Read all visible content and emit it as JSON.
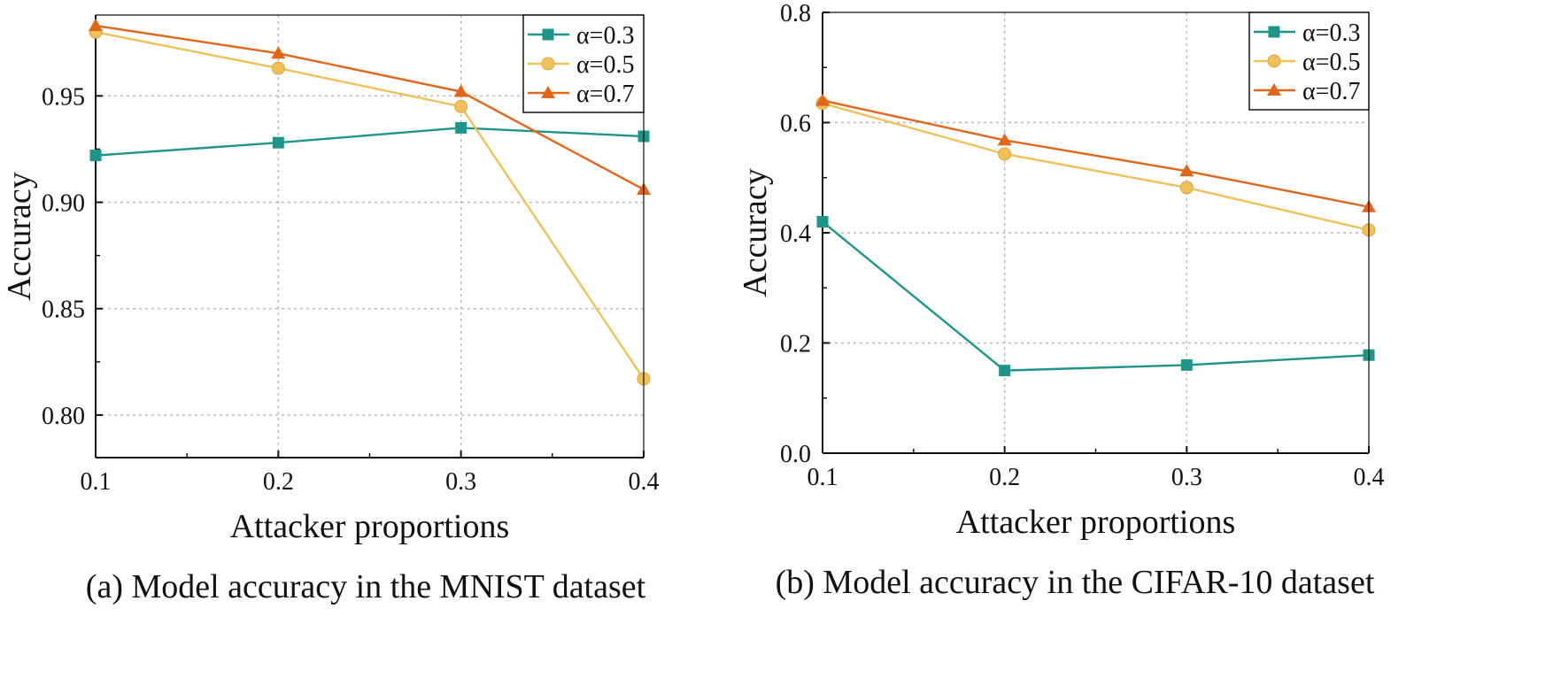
{
  "chart_data": [
    {
      "type": "line",
      "caption": "(a) Model accuracy in the MNIST dataset",
      "xlabel": "Attacker proportions",
      "ylabel": "Accuracy",
      "x": [
        0.1,
        0.2,
        0.3,
        0.4
      ],
      "xticks": [
        "0.1",
        "0.2",
        "0.3",
        "0.4"
      ],
      "xlim": [
        0.1,
        0.4
      ],
      "yticks": [
        "0.80",
        "0.85",
        "0.90",
        "0.95"
      ],
      "ytick_values": [
        0.8,
        0.85,
        0.9,
        0.95
      ],
      "ylim": [
        0.78,
        0.988
      ],
      "grid": true,
      "legend_position": "top-right",
      "series": [
        {
          "name": "α=0.3",
          "color": "#1f9488",
          "marker": "square",
          "values": [
            0.922,
            0.928,
            0.935,
            0.931
          ]
        },
        {
          "name": "α=0.5",
          "color": "#f0c15a",
          "marker": "circle",
          "values": [
            0.98,
            0.963,
            0.945,
            0.817
          ]
        },
        {
          "name": "α=0.7",
          "color": "#e0661c",
          "marker": "triangle",
          "values": [
            0.983,
            0.97,
            0.952,
            0.906
          ]
        }
      ]
    },
    {
      "type": "line",
      "caption": "(b) Model accuracy in the CIFAR-10 dataset",
      "xlabel": "Attacker proportions",
      "ylabel": "Accuracy",
      "x": [
        0.1,
        0.2,
        0.3,
        0.4
      ],
      "xticks": [
        "0.1",
        "0.2",
        "0.3",
        "0.4"
      ],
      "xlim": [
        0.1,
        0.4
      ],
      "yticks": [
        "0.0",
        "0.2",
        "0.4",
        "0.6",
        "0.8"
      ],
      "ytick_values": [
        0.0,
        0.2,
        0.4,
        0.6,
        0.8
      ],
      "ylim": [
        0.0,
        0.8
      ],
      "grid": true,
      "legend_position": "top-right",
      "series": [
        {
          "name": "α=0.3",
          "color": "#1f9488",
          "marker": "square",
          "values": [
            0.42,
            0.15,
            0.16,
            0.178
          ]
        },
        {
          "name": "α=0.5",
          "color": "#f0c15a",
          "marker": "circle",
          "values": [
            0.635,
            0.543,
            0.482,
            0.405
          ]
        },
        {
          "name": "α=0.7",
          "color": "#e0661c",
          "marker": "triangle",
          "values": [
            0.64,
            0.568,
            0.512,
            0.447
          ]
        }
      ]
    }
  ]
}
